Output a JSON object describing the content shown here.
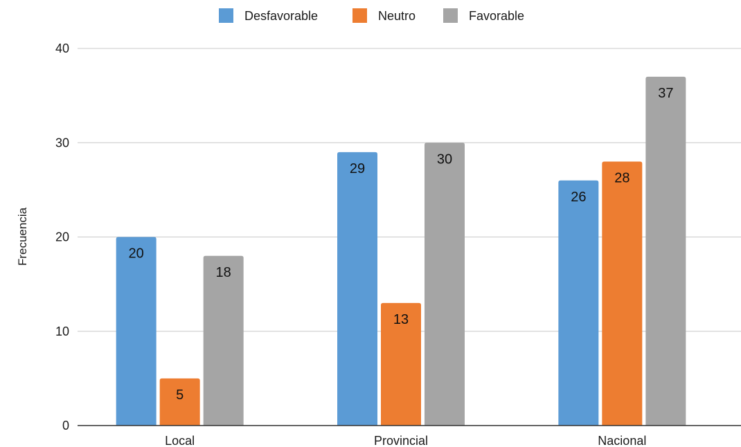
{
  "chart_data": {
    "type": "bar",
    "title": "",
    "xlabel": "",
    "ylabel": "Frecuencia",
    "categories": [
      "Local",
      "Provincial",
      "Nacional"
    ],
    "series": [
      {
        "name": "Desfavorable",
        "color": "#5b9bd5",
        "values": [
          20,
          29,
          26
        ]
      },
      {
        "name": "Neutro",
        "color": "#ed7d31",
        "values": [
          5,
          13,
          28
        ]
      },
      {
        "name": "Favorable",
        "color": "#a5a5a5",
        "values": [
          18,
          30,
          37
        ]
      }
    ],
    "ylim": [
      0,
      40
    ],
    "yticks": [
      "0",
      "10",
      "20",
      "30",
      "40"
    ],
    "grid": true,
    "legend_position": "top-center"
  }
}
